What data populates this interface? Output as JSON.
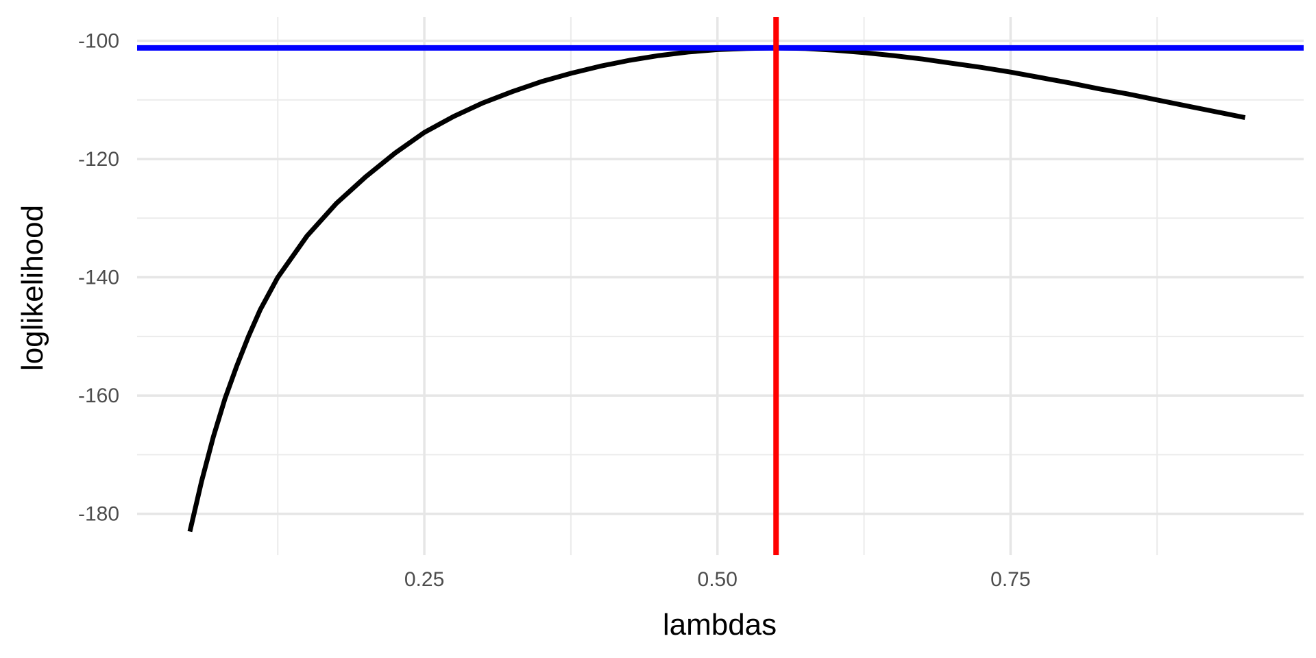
{
  "chart_data": {
    "type": "line",
    "title": "",
    "xlabel": "lambdas",
    "ylabel": "loglikelihood",
    "xlim": [
      0.005,
      1.0
    ],
    "ylim": [
      -187,
      -96
    ],
    "x_major_ticks": [
      0.25,
      0.5,
      0.75
    ],
    "x_minor_ticks": [
      0.125,
      0.375,
      0.625,
      0.875
    ],
    "x_tick_labels": [
      "0.25",
      "0.50",
      "0.75"
    ],
    "y_major_ticks": [
      -100,
      -120,
      -140,
      -160,
      -180
    ],
    "y_minor_ticks": [
      -110,
      -130,
      -150,
      -170
    ],
    "y_tick_labels": [
      "-100",
      "-120",
      "-140",
      "-160",
      "-180"
    ],
    "grid": true,
    "series": [
      {
        "color": "#000000",
        "x": [
          0.05,
          0.06,
          0.07,
          0.08,
          0.09,
          0.1,
          0.11,
          0.125,
          0.15,
          0.175,
          0.2,
          0.225,
          0.25,
          0.275,
          0.3,
          0.325,
          0.35,
          0.375,
          0.4,
          0.425,
          0.45,
          0.475,
          0.5,
          0.525,
          0.55,
          0.575,
          0.6,
          0.625,
          0.65,
          0.675,
          0.7,
          0.725,
          0.75,
          0.775,
          0.8,
          0.825,
          0.85,
          0.875,
          0.9,
          0.925,
          0.95
        ],
        "y": [
          -183,
          -174.5,
          -167,
          -160.5,
          -155,
          -150,
          -145.5,
          -140,
          -133,
          -127.5,
          -123,
          -119,
          -115.5,
          -112.8,
          -110.5,
          -108.6,
          -106.9,
          -105.5,
          -104.3,
          -103.3,
          -102.5,
          -101.9,
          -101.5,
          -101.3,
          -101.2,
          -101.3,
          -101.6,
          -102,
          -102.5,
          -103.1,
          -103.8,
          -104.5,
          -105.3,
          -106.2,
          -107.1,
          -108.1,
          -109,
          -110,
          -111,
          -112,
          -113
        ]
      }
    ],
    "reference_lines": [
      {
        "orientation": "horizontal",
        "value": -101.2,
        "color": "#0000ff"
      },
      {
        "orientation": "vertical",
        "value": 0.55,
        "color": "#ff0000"
      }
    ]
  }
}
